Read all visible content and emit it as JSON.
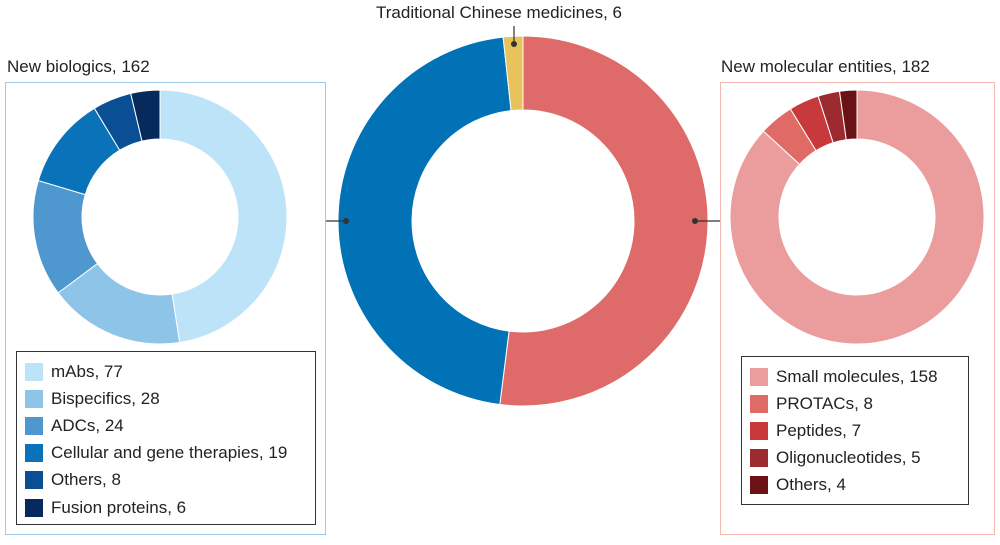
{
  "colors": {
    "biologics_border": "#9fcbe8",
    "nme_border": "#f2b8b0",
    "connector": "#333333"
  },
  "chart_data": [
    {
      "type": "pie",
      "subtype": "donut",
      "title": "Traditional Chinese medicines, 6",
      "slices": [
        {
          "label": "New molecular entities",
          "value": 182,
          "color": "#de6b69"
        },
        {
          "label": "New biologics",
          "value": 162,
          "color": "#0072b5"
        },
        {
          "label": "Traditional Chinese medicines",
          "value": 6,
          "color": "#e8c25a"
        }
      ]
    },
    {
      "type": "pie",
      "subtype": "donut",
      "title": "New biologics, 162",
      "slices": [
        {
          "label": "mAbs, 77",
          "value": 77,
          "color": "#bde3f8"
        },
        {
          "label": "Bispecifics, 28",
          "value": 28,
          "color": "#8ec4e8"
        },
        {
          "label": "ADCs, 24",
          "value": 24,
          "color": "#4f98cf"
        },
        {
          "label": "Cellular and gene therapies, 19",
          "value": 19,
          "color": "#0a72b8"
        },
        {
          "label": "Others, 8",
          "value": 8,
          "color": "#0a4f93"
        },
        {
          "label": "Fusion proteins, 6",
          "value": 6,
          "color": "#062a5c"
        }
      ]
    },
    {
      "type": "pie",
      "subtype": "donut",
      "title": "New molecular entities, 182",
      "slices": [
        {
          "label": "Small molecules, 158",
          "value": 158,
          "color": "#eb9c9c"
        },
        {
          "label": "PROTACs, 8",
          "value": 8,
          "color": "#e06a66"
        },
        {
          "label": "Peptides, 7",
          "value": 7,
          "color": "#c8393c"
        },
        {
          "label": "Oligonucleotides, 5",
          "value": 5,
          "color": "#9b2b2e"
        },
        {
          "label": "Others, 4",
          "value": 4,
          "color": "#6b1216"
        }
      ]
    }
  ]
}
